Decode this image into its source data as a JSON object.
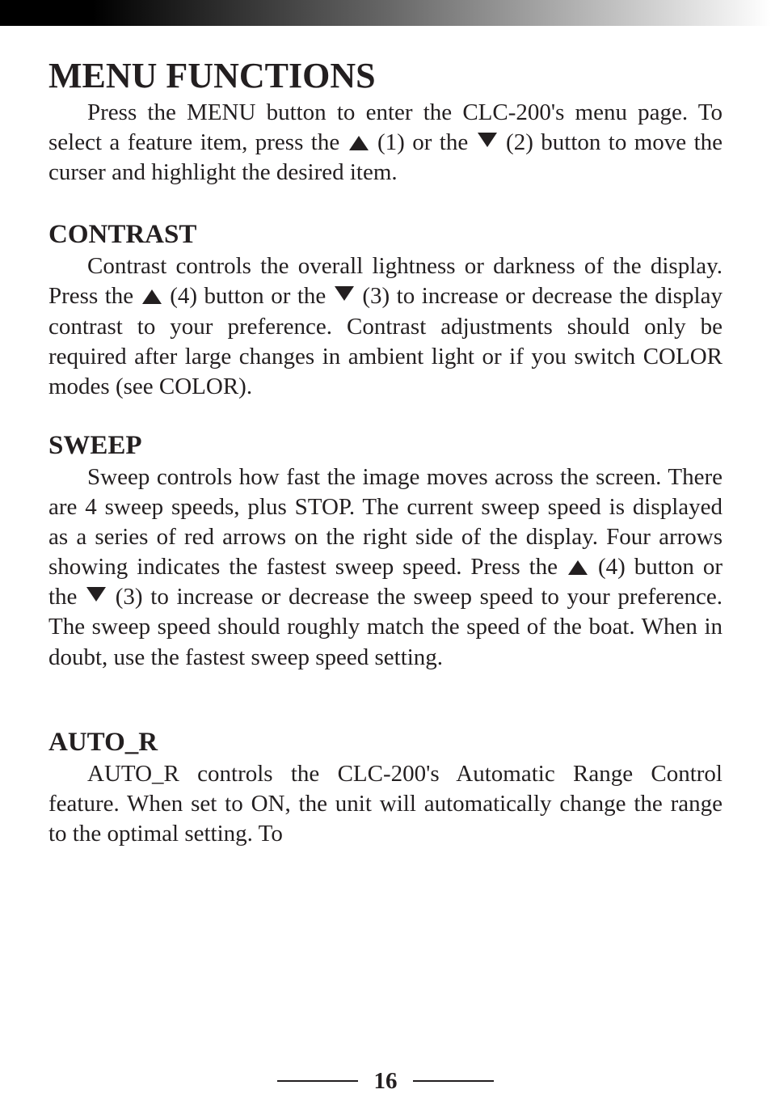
{
  "mainTitle": "MENU FUNCTIONS",
  "intro": {
    "pre": "Press the MENU button to enter the CLC-200's menu page. To select a feature item, press the ",
    "mid1": " (1) or the ",
    "mid2": " (2) button to move the curser and highlight the desired item."
  },
  "contrast": {
    "title": "CONTRAST",
    "pre": "Contrast controls the overall lightness or darkness of the display. Press the ",
    "mid1": " (4) button or the ",
    "mid2": " (3) to increase or decrease the display contrast to your preference. Contrast adjustments should only be required after large changes in ambient light or if you switch COLOR modes (see COLOR)."
  },
  "sweep": {
    "title": "SWEEP",
    "pre": "Sweep controls how fast the image moves across the screen. There are 4 sweep speeds, plus STOP. The current sweep speed is displayed as a series of red arrows on the right side of the display. Four arrows showing indicates the fastest sweep speed. Press the ",
    "mid1": " (4) button or the ",
    "mid2": " (3) to increase or decrease the sweep speed to your preference. The sweep speed should roughly match the speed of the boat. When in doubt, use the fastest sweep speed setting."
  },
  "autor": {
    "title": "AUTO_R",
    "body": "AUTO_R controls the CLC-200's  Automatic Range Control feature. When set to ON, the unit will automatically change the range to the optimal setting. To"
  },
  "pageNumber": "16"
}
